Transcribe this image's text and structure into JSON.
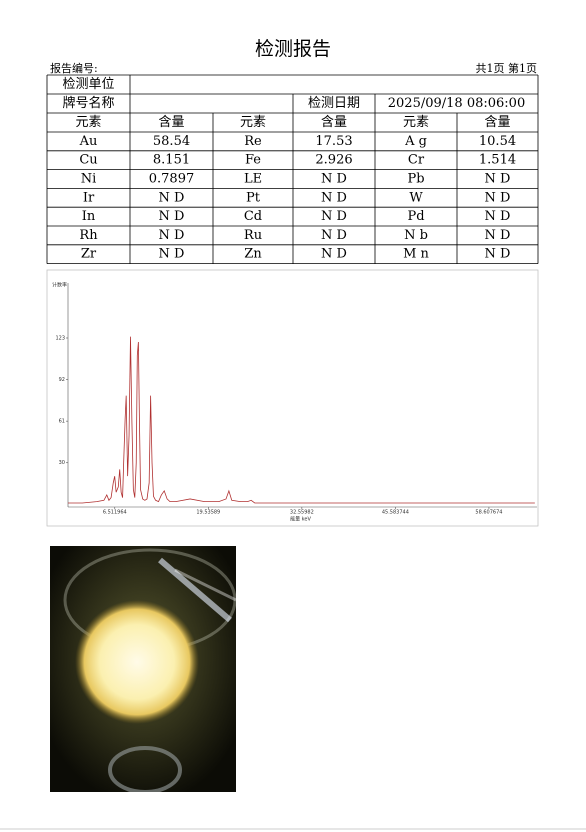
{
  "header": {
    "title": "检测报告",
    "report_no_label": "报告编号:",
    "page_info": "共1页 第1页"
  },
  "table": {
    "unit_label": "检测单位",
    "grade_label": "牌号名称",
    "date_label": "检测日期",
    "date": "2025/09/18 08:06:00",
    "columns": [
      "元素",
      "含量",
      "元素",
      "含量",
      "元素",
      "含量"
    ],
    "rows": [
      [
        "Au",
        "58.54",
        "Re",
        "17.53",
        "A g",
        "10.54"
      ],
      [
        "Cu",
        "8.151",
        "Fe",
        "2.926",
        "Cr",
        "1.514"
      ],
      [
        "Ni",
        "0.7897",
        "LE",
        "N D",
        "Pb",
        "N D"
      ],
      [
        "Ir",
        "N D",
        "Pt",
        "N D",
        "W",
        "N D"
      ],
      [
        "In",
        "N D",
        "Cd",
        "N D",
        "Pd",
        "N D"
      ],
      [
        "Rh",
        "N D",
        "Ru",
        "N D",
        "N b",
        "N D"
      ],
      [
        "Zr",
        "N D",
        "Zn",
        "N D",
        "M n",
        "N D"
      ]
    ],
    "highlight_color": "#e00000",
    "highlight_cells": [
      [
        0,
        2
      ],
      [
        0,
        3
      ]
    ]
  },
  "chart_data": {
    "type": "line",
    "x_label": "能量 keV",
    "y_label": "计数率",
    "x": [
      0,
      2,
      4,
      5,
      5.4,
      5.7,
      6.0,
      6.3,
      6.5,
      6.7,
      7.0,
      7.2,
      7.4,
      7.6,
      7.75,
      7.95,
      8.1,
      8.3,
      8.5,
      8.7,
      8.9,
      9.1,
      9.3,
      9.5,
      9.65,
      9.8,
      9.95,
      10.1,
      10.4,
      10.7,
      11.0,
      11.3,
      11.5,
      11.7,
      11.9,
      12.2,
      12.6,
      13.0,
      13.4,
      13.8,
      14.2,
      15,
      17,
      19,
      21,
      22,
      22.4,
      22.8,
      24,
      25,
      25.5,
      26,
      30,
      40,
      50,
      60,
      65
    ],
    "series": [
      {
        "color": "#b03030",
        "values": [
          0,
          0,
          1,
          2,
          6,
          2,
          4,
          15,
          20,
          8,
          12,
          25,
          8,
          4,
          30,
          62,
          80,
          20,
          50,
          124,
          60,
          10,
          4,
          30,
          110,
          120,
          60,
          10,
          3,
          2,
          3,
          15,
          80,
          30,
          5,
          2,
          1,
          6,
          9,
          3,
          1,
          1,
          3,
          1,
          1,
          3,
          9,
          2,
          1,
          1,
          2,
          0,
          0,
          0,
          0,
          0,
          0
        ]
      }
    ],
    "xlim": [
      0,
      65.3
    ],
    "ylim": [
      -3,
      164
    ],
    "xticks": [
      6.511964,
      19.53589,
      32.55982,
      45.583744,
      58.607674
    ],
    "yticks": [
      30,
      61,
      92,
      123
    ]
  }
}
